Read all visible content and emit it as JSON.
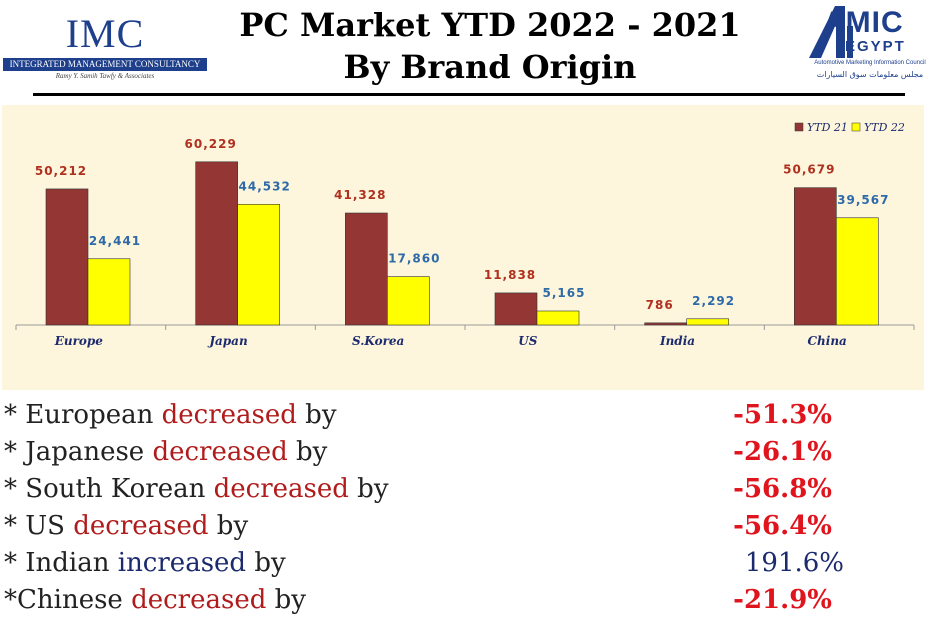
{
  "header": {
    "title_line1": "PC Market YTD 2022 - 2021",
    "title_line2": "By Brand Origin",
    "imc_logo": {
      "big": "IMC",
      "bar": "INTEGRATED MANAGEMENT CONSULTANCY",
      "tagline": "Ramy Y. Samih Tawfy & Associates"
    },
    "amic_logo": {
      "big": "AMIC",
      "sub": "EGYPT",
      "english": "Automotive Marketing Information Council",
      "arabic": "مجلس معلومات سوق السيارات"
    }
  },
  "chart_data": {
    "type": "bar",
    "categories": [
      "Europe",
      "Japan",
      "S.Korea",
      "US",
      "India",
      "China"
    ],
    "series": [
      {
        "name": "YTD 21",
        "values": [
          50212,
          60229,
          41328,
          11838,
          786,
          50679
        ],
        "labels": [
          "50,212",
          "60,229",
          "41,328",
          "11,838",
          "786",
          "50,679"
        ]
      },
      {
        "name": "YTD 22",
        "values": [
          24441,
          44532,
          17860,
          5165,
          2292,
          39567
        ],
        "labels": [
          "24,441",
          "44,532",
          "17,860",
          "5,165",
          "2,292",
          "39,567"
        ]
      }
    ],
    "colors": {
      "YTD 21": "#943634",
      "YTD 22": "#ffff00",
      "label_21": "#b0301f",
      "label_22": "#2e6aa8",
      "background": "#fdf6dc"
    },
    "legend_position": "top-right",
    "grid": false,
    "ylim": [
      0,
      62000
    ]
  },
  "stats": [
    {
      "prefix": "* European ",
      "verb": "decreased",
      "suffix": " by",
      "value": "-51.3%",
      "direction": "down"
    },
    {
      "prefix": "* Japanese ",
      "verb": "decreased",
      "suffix": " by",
      "value": "-26.1%",
      "direction": "down"
    },
    {
      "prefix": "* South Korean ",
      "verb": "decreased",
      "suffix": " by",
      "value": "-56.8%",
      "direction": "down"
    },
    {
      "prefix": "* US ",
      "verb": "decreased",
      "suffix": " by",
      "value": "-56.4%",
      "direction": "down"
    },
    {
      "prefix": "* Indian ",
      "verb": "increased",
      "suffix": " by",
      "value": "191.6%",
      "direction": "up"
    },
    {
      "prefix": "*Chinese ",
      "verb": "decreased",
      "suffix": " by",
      "value": "-21.9%",
      "direction": "down"
    }
  ]
}
